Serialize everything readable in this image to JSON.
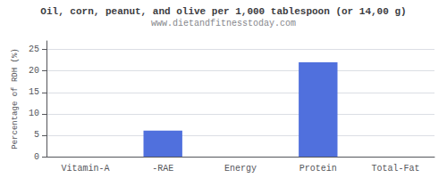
{
  "chart_data": {
    "type": "bar",
    "title": "Oil, corn, peanut, and olive per 1,000 tablespoon (or 14,00 g)",
    "subtitle": "www.dietandfitnesstoday.com",
    "categories": [
      "Vitamin-A",
      "-RAE",
      "Energy",
      "Protein",
      "Total-Fat"
    ],
    "values": [
      0,
      6.1,
      0,
      22.0,
      0
    ],
    "ylabel": "Percentage of RDH (%)",
    "ylim": [
      0,
      27
    ],
    "yticks": [
      0,
      5,
      10,
      15,
      20,
      25
    ],
    "grid": true
  }
}
